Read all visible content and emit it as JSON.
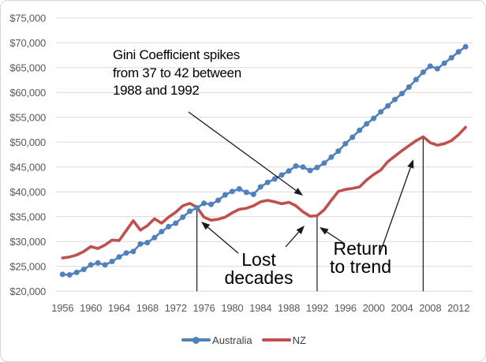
{
  "chart_data": {
    "type": "line",
    "title": "",
    "xlabel": "",
    "ylabel": "",
    "ylim": [
      20000,
      75000
    ],
    "ytick_step": 5000,
    "grid": "horizontal-only",
    "legend_position": "bottom-center",
    "x": [
      1956,
      1957,
      1958,
      1959,
      1960,
      1961,
      1962,
      1963,
      1964,
      1965,
      1966,
      1967,
      1968,
      1969,
      1970,
      1971,
      1972,
      1973,
      1974,
      1975,
      1976,
      1977,
      1978,
      1979,
      1980,
      1981,
      1982,
      1983,
      1984,
      1985,
      1986,
      1987,
      1988,
      1989,
      1990,
      1991,
      1992,
      1993,
      1994,
      1995,
      1996,
      1997,
      1998,
      1999,
      2000,
      2001,
      2002,
      2003,
      2004,
      2005,
      2006,
      2007,
      2008,
      2009,
      2010,
      2011,
      2012,
      2013
    ],
    "series": [
      {
        "name": "Australia",
        "color": "#4F81BD",
        "marker": "circle",
        "values": [
          23400,
          23300,
          23800,
          24400,
          25300,
          25700,
          25300,
          26000,
          26900,
          27700,
          28000,
          29500,
          29800,
          30800,
          32000,
          33000,
          33700,
          34900,
          36100,
          36800,
          37700,
          37500,
          38300,
          39400,
          40100,
          40600,
          39900,
          39500,
          41000,
          41900,
          42600,
          43400,
          44200,
          45200,
          45000,
          44300,
          44900,
          45800,
          47000,
          48200,
          49700,
          51000,
          52400,
          53700,
          54800,
          56100,
          57300,
          58600,
          59800,
          61100,
          62600,
          64100,
          65300,
          64800,
          65900,
          67000,
          68200,
          69200
        ]
      },
      {
        "name": "NZ",
        "color": "#C0504D",
        "marker": "none",
        "values": [
          26700,
          26900,
          27300,
          28000,
          29000,
          28600,
          29300,
          30300,
          30200,
          32200,
          34200,
          32300,
          33200,
          34600,
          33700,
          34900,
          35900,
          37200,
          37700,
          36900,
          34900,
          34300,
          34500,
          34900,
          35800,
          36500,
          36700,
          37200,
          38000,
          38300,
          38000,
          37600,
          37900,
          37200,
          36000,
          35100,
          35200,
          36400,
          38300,
          40100,
          40500,
          40700,
          41000,
          42400,
          43500,
          44400,
          46100,
          47200,
          48300,
          49300,
          50300,
          51100,
          49900,
          49400,
          49700,
          50300,
          51500,
          53000
        ]
      }
    ],
    "ytick_labels": [
      "$75,000",
      "$70,000",
      "$65,000",
      "$60,000",
      "$55,000",
      "$50,000",
      "$45,000",
      "$40,000",
      "$35,000",
      "$30,000",
      "$25,000",
      "$20,000"
    ],
    "xtick_labels": [
      "1956",
      "1960",
      "1964",
      "1968",
      "1972",
      "1976",
      "1980",
      "1984",
      "1988",
      "1992",
      "1996",
      "2000",
      "2004",
      "2008",
      "2012"
    ],
    "annotations": [
      {
        "id": "gini",
        "text": "Gini Coefficient spikes\nfrom 37 to 42 between\n1988 and 1992"
      },
      {
        "id": "lost-decades",
        "text": "Lost\ndecades"
      },
      {
        "id": "return-to-trend",
        "text": "Return\nto trend"
      }
    ],
    "vertical_line_years": [
      1975,
      1992,
      2007
    ],
    "annotation_arrows": [
      {
        "name": "gini-arrow",
        "from": [
          238,
          141
        ],
        "to": [
          383,
          247
        ]
      },
      {
        "name": "lost-arrow-left",
        "from": [
          301,
          320
        ],
        "to": [
          254,
          280
        ]
      },
      {
        "name": "lost-arrow-right",
        "from": [
          361,
          312
        ],
        "to": [
          385,
          285
        ]
      },
      {
        "name": "return-arrow-left",
        "from": [
          436,
          308
        ],
        "to": [
          404,
          287
        ]
      },
      {
        "name": "return-arrow-right",
        "from": [
          480,
          322
        ],
        "to": [
          523,
          201
        ]
      }
    ],
    "colors": {
      "axis_text": "#595959",
      "gridline": "#D9D9D9",
      "annotation_line": "#1a1a1a",
      "frame_border": "#d6d6d6"
    }
  }
}
